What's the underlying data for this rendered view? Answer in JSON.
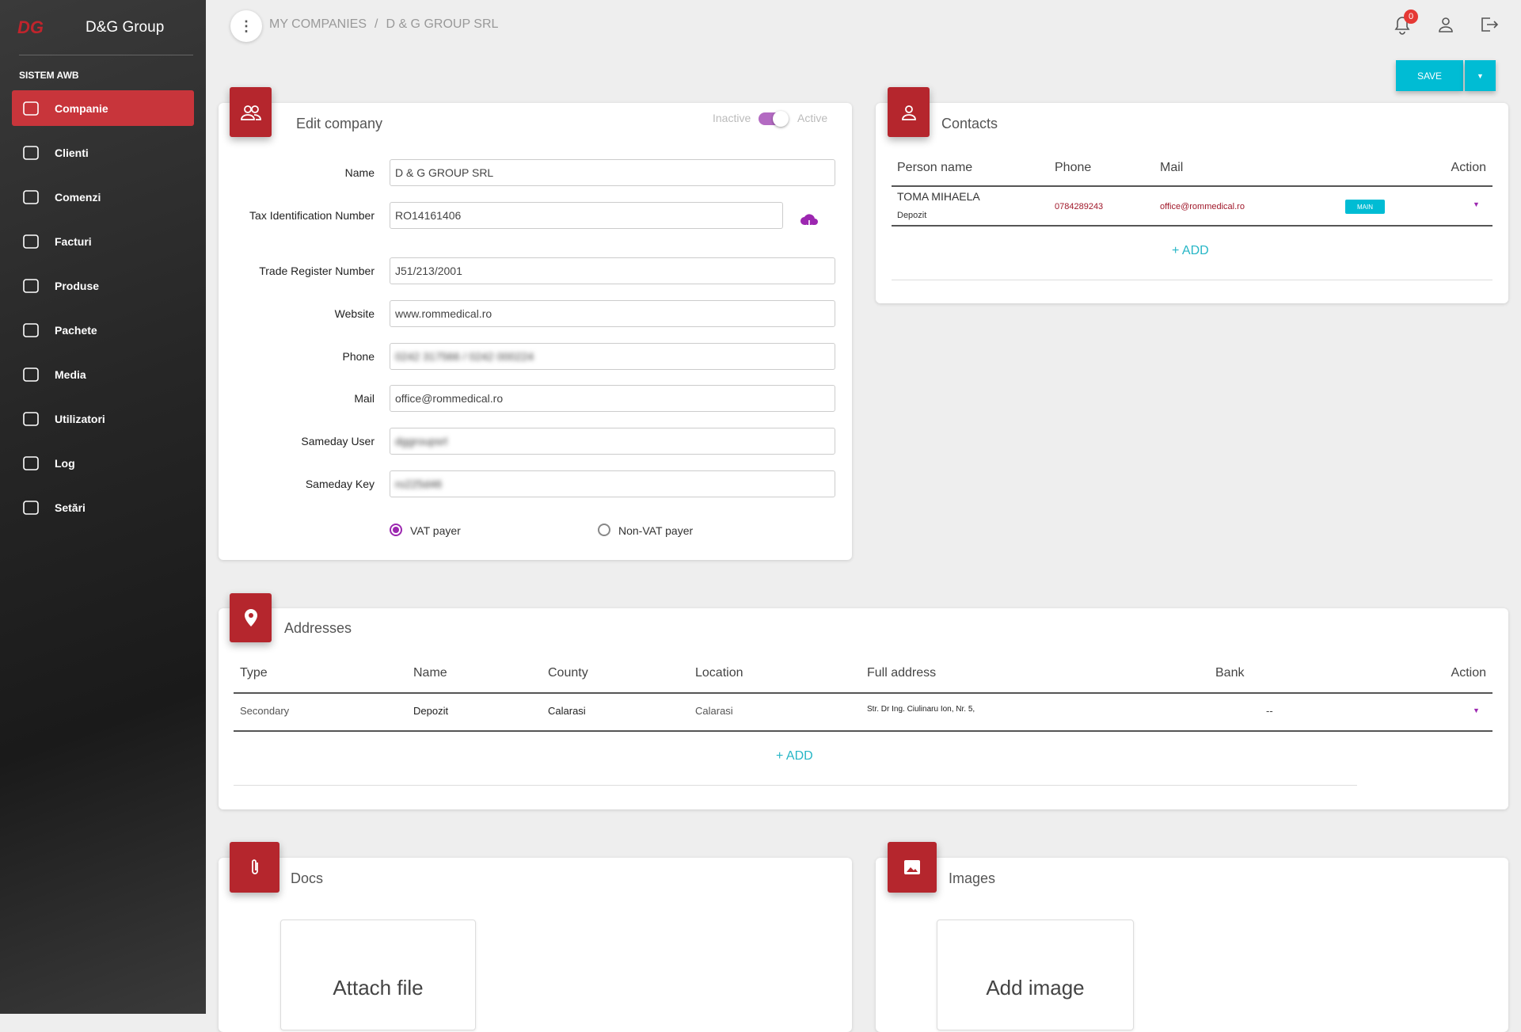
{
  "sidebar": {
    "logo": "DG",
    "brand": "D&G Group",
    "section": "SISTEM AWB",
    "items": [
      "Companie",
      "Clienti",
      "Comenzi",
      "Facturi",
      "Produse",
      "Pachete",
      "Media",
      "Utilizatori",
      "Log",
      "Setări"
    ],
    "active": 0
  },
  "topbar": {
    "breadcrumb": [
      "MY COMPANIES",
      "D & G GROUP SRL"
    ],
    "separator": "/",
    "notifications": 0
  },
  "save": "SAVE",
  "edit_company": {
    "title": "Edit company",
    "status_off": "Inactive",
    "status_on": "Active",
    "fields": [
      {
        "label": "Name",
        "value": "D & G GROUP SRL"
      },
      {
        "label": "Tax Identification Number",
        "value": "RO14161406"
      },
      {
        "label": "Trade Register Number",
        "value": "J51/213/2001"
      },
      {
        "label": "Website",
        "value": "www.rommedical.ro"
      },
      {
        "label": "Phone",
        "value": "0242 317566 / 0242 000224"
      },
      {
        "label": "Mail",
        "value": "office@rommedical.ro"
      },
      {
        "label": "Sameday User",
        "value": "dggroupsrl"
      },
      {
        "label": "Sameday Key",
        "value": "ro225d46"
      }
    ],
    "vat_options": [
      "VAT payer",
      "Non-VAT payer"
    ]
  },
  "contacts": {
    "title": "Contacts",
    "columns": [
      "Person name",
      "Phone",
      "Mail",
      "Action"
    ],
    "rows": [
      {
        "name": "TOMA MIHAELA",
        "role": "Depozit",
        "phone": "0784289243",
        "mail": "office@rommedical.ro",
        "badge": "MAIN"
      }
    ],
    "add": "ADD"
  },
  "addresses": {
    "title": "Addresses",
    "columns": [
      "Type",
      "Name",
      "County",
      "Location",
      "Full address",
      "Bank",
      "Action"
    ],
    "rows": [
      [
        "Secondary",
        "Depozit",
        "Calarasi",
        "Calarasi",
        "Str. Dr Ing. Ciulinaru Ion, Nr. 5,",
        "--"
      ]
    ],
    "add": "ADD"
  },
  "docs": {
    "title": "Docs",
    "button": "Attach file"
  },
  "images": {
    "title": "Images",
    "button": "Add image"
  }
}
